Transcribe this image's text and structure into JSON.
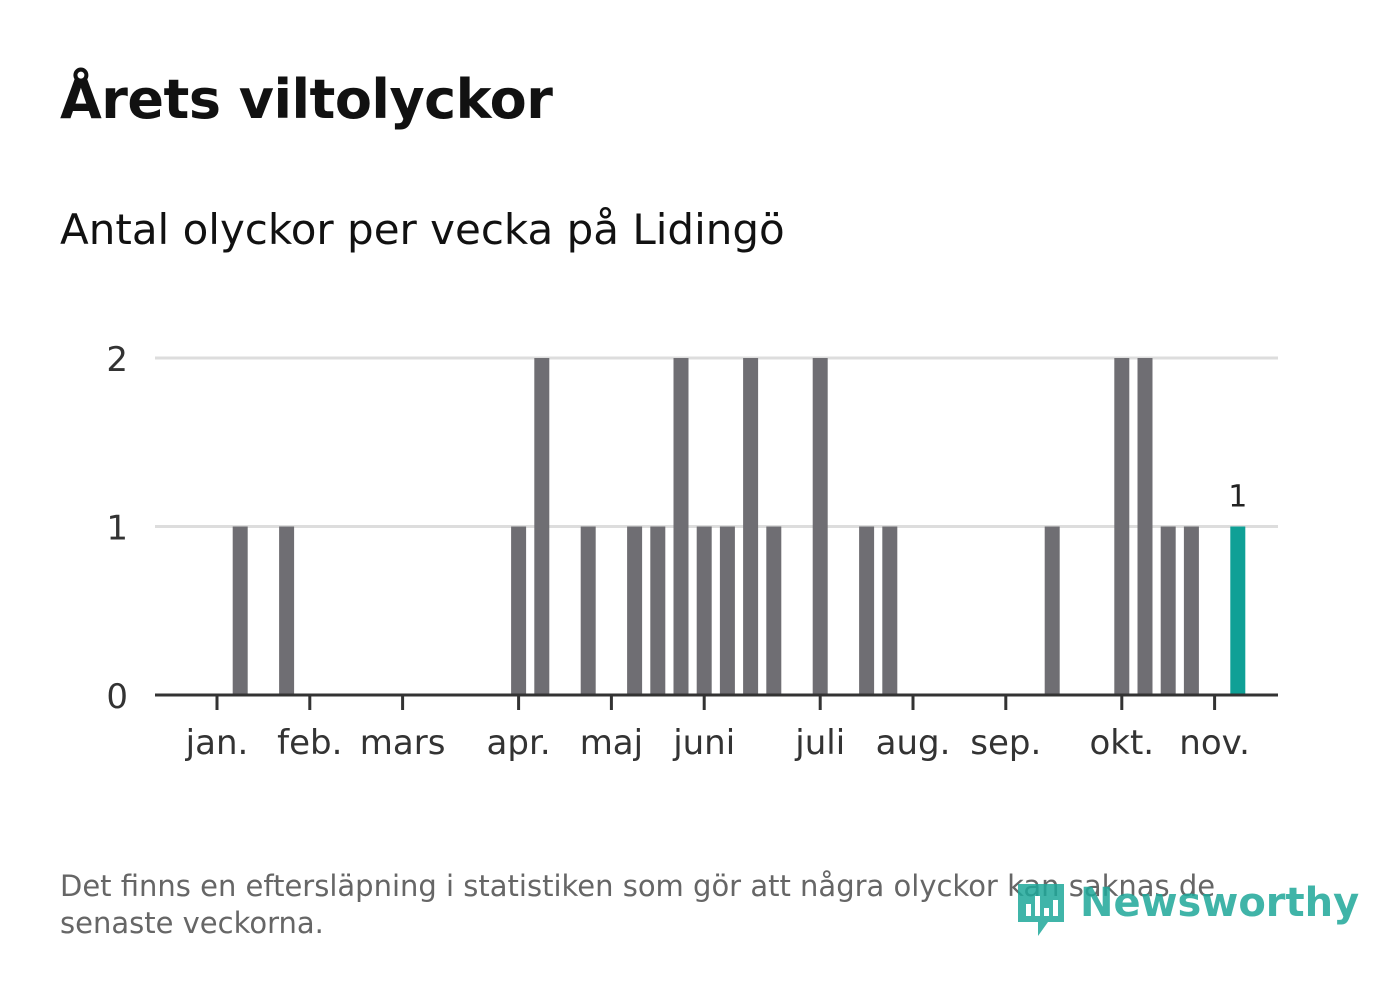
{
  "title": "Årets viltolyckor",
  "subtitle": "Antal olyckor per vecka på Lidingö",
  "footnote": "Det finns en eftersläpning i statistiken som gör att några olyckor kan saknas de senaste veckorna.",
  "logo": {
    "text": "Newsworthy"
  },
  "colors": {
    "bar": "#6f6e73",
    "highlight": "#0fa096",
    "grid": "#dddddd",
    "axis": "#333333"
  },
  "chart_data": {
    "type": "bar",
    "title": "Årets viltolyckor",
    "subtitle": "Antal olyckor per vecka på Lidingö",
    "xlabel": "",
    "ylabel": "",
    "ylim": [
      0,
      2
    ],
    "yticks": [
      "0",
      "1",
      "2"
    ],
    "weeks": [
      1,
      2,
      3,
      4,
      5,
      6,
      7,
      8,
      9,
      10,
      11,
      12,
      13,
      14,
      15,
      16,
      17,
      18,
      19,
      20,
      21,
      22,
      23,
      24,
      25,
      26,
      27,
      28,
      29,
      30,
      31,
      32,
      33,
      34,
      35,
      36,
      37,
      38,
      39,
      40,
      41,
      42,
      43,
      44,
      45
    ],
    "values": [
      0,
      1,
      0,
      1,
      0,
      0,
      0,
      0,
      0,
      0,
      0,
      0,
      0,
      1,
      2,
      0,
      1,
      0,
      1,
      1,
      2,
      1,
      1,
      2,
      1,
      0,
      2,
      0,
      1,
      1,
      0,
      0,
      0,
      0,
      0,
      0,
      1,
      0,
      0,
      2,
      2,
      1,
      1,
      0,
      1
    ],
    "highlight_index": 44,
    "highlight_label": "1",
    "month_labels": [
      "jan.",
      "feb.",
      "mars",
      "apr.",
      "maj",
      "juni",
      "juli",
      "aug.",
      "sep.",
      "okt.",
      "nov."
    ],
    "month_label_weeks": [
      1.0,
      5.0,
      9.0,
      14.0,
      18.0,
      22.0,
      27.0,
      31.0,
      35.0,
      40.0,
      44.0
    ]
  }
}
